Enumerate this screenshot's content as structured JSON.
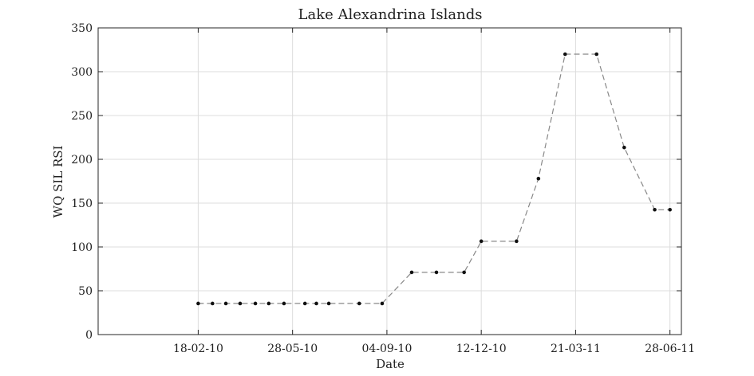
{
  "chart_data": {
    "type": "line",
    "title": "Lake Alexandrina Islands",
    "xlabel": "Date",
    "ylabel": "WQ SIL RSI",
    "x_type": "date",
    "x_range": [
      "2009-11-05",
      "2011-07-10"
    ],
    "ylim": [
      0,
      350
    ],
    "yticks": [
      0,
      50,
      100,
      150,
      200,
      250,
      300,
      350
    ],
    "xticks": [
      {
        "date": "2010-02-18",
        "label": "18-02-10"
      },
      {
        "date": "2010-05-28",
        "label": "28-05-10"
      },
      {
        "date": "2010-09-04",
        "label": "04-09-10"
      },
      {
        "date": "2010-12-12",
        "label": "12-12-10"
      },
      {
        "date": "2011-03-21",
        "label": "21-03-11"
      },
      {
        "date": "2011-06-28",
        "label": "28-06-11"
      }
    ],
    "grid": true,
    "series": [
      {
        "line_style": "dashed",
        "color": "#888888",
        "marker_color": "#111111",
        "points": [
          {
            "x": "2010-02-18",
            "y": 35.5
          },
          {
            "x": "2010-03-05",
            "y": 35.5
          },
          {
            "x": "2010-03-19",
            "y": 35.5
          },
          {
            "x": "2010-04-03",
            "y": 35.5
          },
          {
            "x": "2010-04-19",
            "y": 35.5
          },
          {
            "x": "2010-05-03",
            "y": 35.5
          },
          {
            "x": "2010-05-19",
            "y": 35.5
          },
          {
            "x": "2010-06-10",
            "y": 35.5
          },
          {
            "x": "2010-06-22",
            "y": 35.5
          },
          {
            "x": "2010-07-05",
            "y": 35.5
          },
          {
            "x": "2010-08-06",
            "y": 35.5
          },
          {
            "x": "2010-08-30",
            "y": 35.5
          },
          {
            "x": "2010-09-30",
            "y": 71
          },
          {
            "x": "2010-10-26",
            "y": 71
          },
          {
            "x": "2010-11-24",
            "y": 71
          },
          {
            "x": "2010-12-12",
            "y": 106.5
          },
          {
            "x": "2011-01-18",
            "y": 106.5
          },
          {
            "x": "2011-02-10",
            "y": 178
          },
          {
            "x": "2011-03-10",
            "y": 320
          },
          {
            "x": "2011-04-12",
            "y": 320
          },
          {
            "x": "2011-05-11",
            "y": 213.5
          },
          {
            "x": "2011-06-12",
            "y": 142.5
          },
          {
            "x": "2011-06-28",
            "y": 142.5
          }
        ]
      }
    ]
  }
}
